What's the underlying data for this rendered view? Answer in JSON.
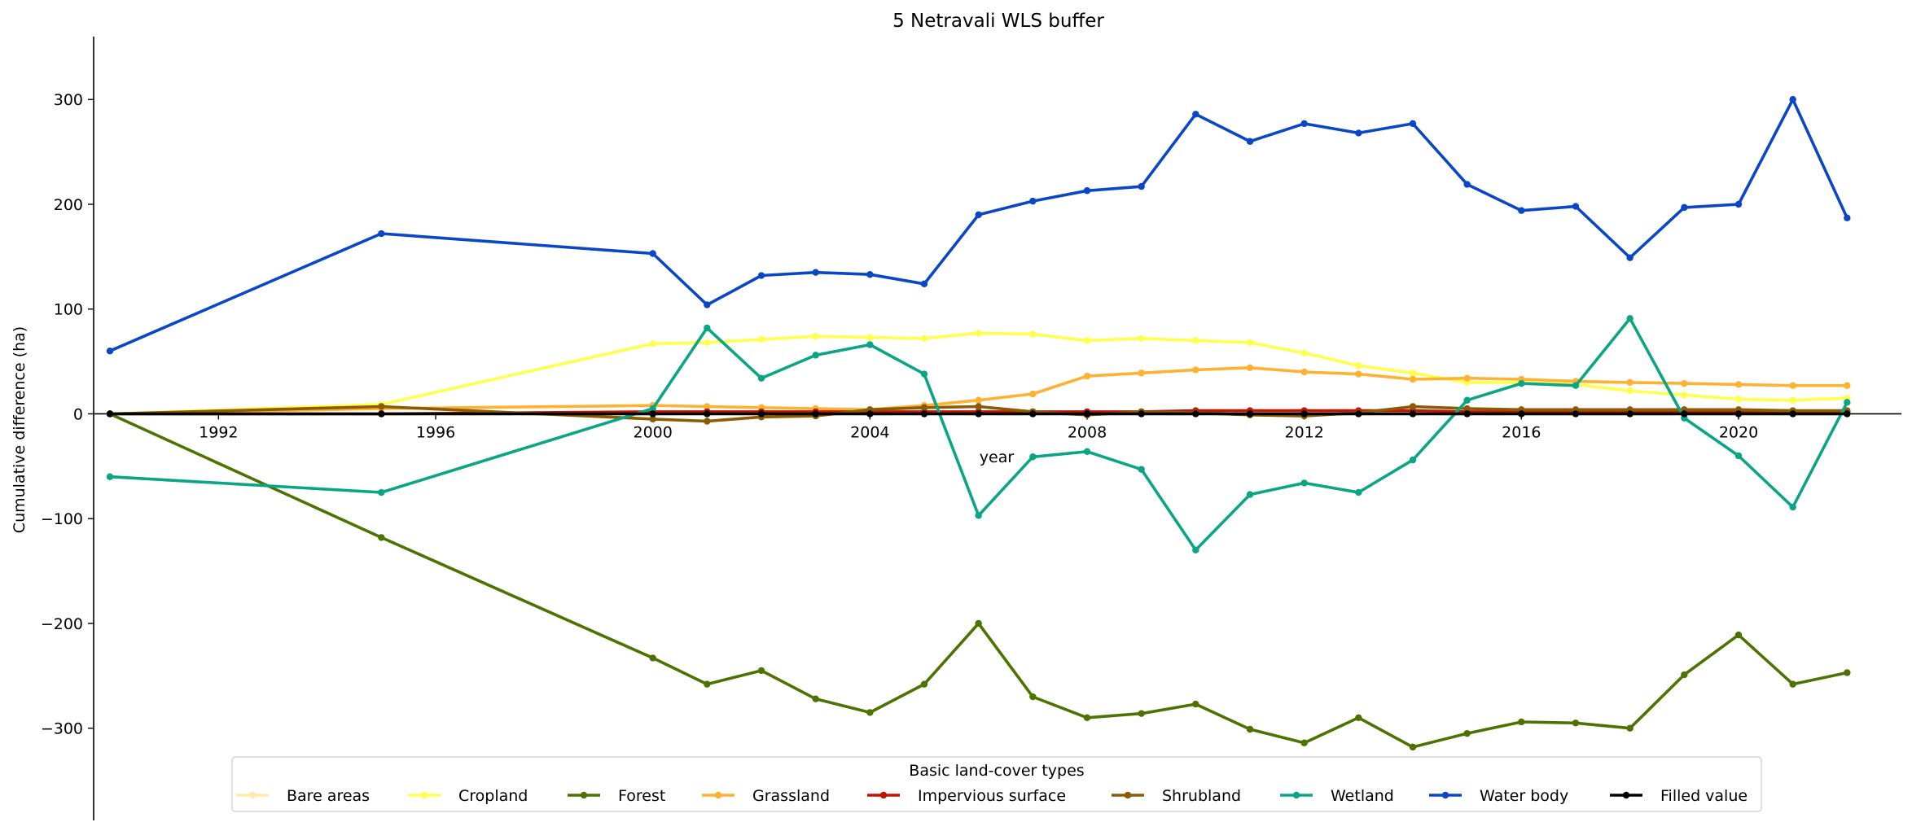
{
  "chart_data": {
    "type": "line",
    "title": "5 Netravali WLS buffer",
    "xlabel": "year",
    "ylabel": "Cumulative difference (ha)",
    "x_ticks": [
      1992,
      1996,
      2000,
      2004,
      2008,
      2012,
      2016,
      2020
    ],
    "y_ticks": [
      -300,
      -200,
      -100,
      0,
      100,
      200,
      300
    ],
    "xlim": [
      1989.7,
      2023
    ],
    "ylim": [
      -388,
      360
    ],
    "legend_title": "Basic land-cover types",
    "legend_position": "bottom-center",
    "x": [
      1990,
      1995,
      2000,
      2001,
      2002,
      2003,
      2004,
      2005,
      2006,
      2007,
      2008,
      2009,
      2010,
      2011,
      2012,
      2013,
      2014,
      2015,
      2016,
      2017,
      2018,
      2019,
      2020,
      2021,
      2022
    ],
    "series": [
      {
        "name": "Bare areas",
        "color": "#ffeaa8",
        "values": [
          0,
          0,
          0,
          0,
          0,
          0,
          0,
          0,
          0,
          0,
          0,
          0,
          0,
          0,
          0,
          0,
          0,
          0,
          0,
          0,
          0,
          0,
          0,
          0,
          0
        ]
      },
      {
        "name": "Cropland",
        "color": "#ffff4d",
        "values": [
          0,
          9,
          67,
          68,
          71,
          74,
          73,
          72,
          77,
          76,
          70,
          72,
          70,
          68,
          58,
          46,
          39,
          30,
          30,
          28,
          22,
          18,
          14,
          13,
          15
        ]
      },
      {
        "name": "Forest",
        "color": "#4c7300",
        "values": [
          0,
          -118,
          -233,
          -258,
          -245,
          -272,
          -285,
          -258,
          -200,
          -270,
          -290,
          -286,
          -277,
          -301,
          -314,
          -290,
          -318,
          -305,
          -294,
          -295,
          -300,
          -249,
          -211,
          -258,
          -247
        ]
      },
      {
        "name": "Grassland",
        "color": "#ffb132",
        "values": [
          0,
          5,
          8,
          7,
          6,
          5,
          4,
          8,
          13,
          19,
          36,
          39,
          42,
          44,
          40,
          38,
          33,
          34,
          33,
          31,
          30,
          29,
          28,
          27,
          27
        ]
      },
      {
        "name": "Impervious surface",
        "color": "#c31400",
        "values": [
          0,
          0,
          2,
          2,
          2,
          2,
          2,
          2,
          2,
          2,
          2,
          2,
          3,
          3,
          3,
          3,
          3,
          2,
          2,
          2,
          2,
          2,
          2,
          2,
          2
        ]
      },
      {
        "name": "Shrubland",
        "color": "#8c5a00",
        "values": [
          0,
          7,
          -5,
          -7,
          -3,
          -2,
          4,
          6,
          7,
          2,
          -1,
          2,
          1,
          -1,
          -2,
          1,
          7,
          5,
          4,
          4,
          4,
          4,
          4,
          3,
          3
        ]
      },
      {
        "name": "Wetland",
        "color": "#0aa585",
        "values": [
          -60,
          -75,
          5,
          82,
          34,
          56,
          66,
          38,
          -97,
          -41,
          -36,
          -53,
          -130,
          -77,
          -66,
          -75,
          -44,
          13,
          29,
          27,
          91,
          -4,
          -40,
          -89,
          11
        ]
      },
      {
        "name": "Water body",
        "color": "#0a46c8",
        "values": [
          60,
          172,
          153,
          104,
          132,
          135,
          133,
          124,
          190,
          203,
          213,
          217,
          286,
          260,
          277,
          268,
          277,
          219,
          194,
          198,
          149,
          197,
          200,
          300,
          187
        ]
      },
      {
        "name": "Filled value",
        "color": "#000000",
        "values": [
          0,
          0,
          0,
          0,
          0,
          0,
          0,
          0,
          0,
          0,
          0,
          0,
          0,
          0,
          0,
          0,
          0,
          0,
          0,
          0,
          0,
          0,
          0,
          0,
          0
        ]
      }
    ]
  }
}
